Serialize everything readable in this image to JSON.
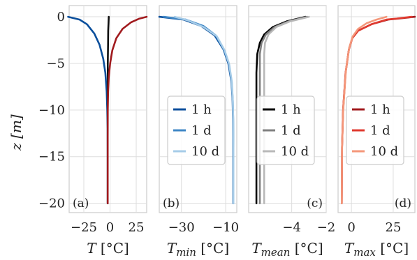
{
  "figure": {
    "ylabel": "z [m]",
    "yticks": [
      0,
      -5,
      -10,
      -15,
      -20
    ],
    "ytick_labels": [
      "0",
      "−5",
      "−10",
      "−15",
      "−20"
    ]
  },
  "chart_data": [
    {
      "type": "line",
      "panel_tag": "(a)",
      "xlabel": "T [°C]",
      "xlim": [
        -39,
        35
      ],
      "xticks": [
        -25,
        0,
        25
      ],
      "xtick_labels": [
        "−25",
        "0",
        "25"
      ],
      "ylim": [
        -21,
        1.2
      ],
      "grid": true,
      "legend": null,
      "series": [
        {
          "color": "#0b4f9c",
          "x": [
            -40,
            -29,
            -22,
            -15,
            -10,
            -6.5,
            -4.5,
            -3.2,
            -2.6,
            -2.3,
            -2.2,
            -2.2
          ],
          "y": [
            0,
            -0.3,
            -0.8,
            -1.8,
            -3,
            -4.5,
            -6,
            -8,
            -10,
            -12,
            -15,
            -20
          ]
        },
        {
          "color": "#111111",
          "x": [
            -1.2,
            -1.4,
            -1.7,
            -1.9,
            -2.1,
            -2.2,
            -2.2,
            -2.2
          ],
          "y": [
            0,
            -0.6,
            -1.5,
            -3,
            -5,
            -8,
            -12,
            -20
          ]
        },
        {
          "color": "#a11a1e",
          "x": [
            35,
            28,
            20,
            12,
            6,
            2.2,
            0.1,
            -1.2,
            -1.8,
            -2.1,
            -2.2,
            -2.2
          ],
          "y": [
            0,
            -0.2,
            -0.6,
            -1.3,
            -2.3,
            -3.6,
            -5,
            -6.5,
            -8,
            -10,
            -13,
            -20
          ]
        }
      ]
    },
    {
      "type": "line",
      "panel_tag": "(b)",
      "xlabel": "T_min [°C]",
      "xlim": [
        -40,
        -5
      ],
      "xticks": [
        -30,
        -10
      ],
      "xtick_labels": [
        "−30",
        "−10"
      ],
      "ylim": [
        -21,
        1.2
      ],
      "grid": true,
      "legend": {
        "placement": "center",
        "entries": [
          "1 h",
          "1 d",
          "10 d"
        ]
      },
      "series": [
        {
          "name": "1 h",
          "color": "#0b4f9c",
          "x": [
            -40,
            -29,
            -21,
            -15,
            -11,
            -8.8,
            -7.4,
            -6.9,
            -6.7,
            -6.6,
            -6.6
          ],
          "y": [
            0,
            -0.3,
            -1,
            -2,
            -3.5,
            -5,
            -7,
            -9,
            -11,
            -14,
            -20
          ]
        },
        {
          "name": "1 d",
          "color": "#3f87c6",
          "x": [
            -38,
            -28,
            -20,
            -14.5,
            -10.8,
            -8.6,
            -7.3,
            -6.8,
            -6.6,
            -6.5,
            -6.5
          ],
          "y": [
            0,
            -0.3,
            -1,
            -2,
            -3.5,
            -5,
            -7,
            -9,
            -11,
            -14,
            -20
          ]
        },
        {
          "name": "10 d",
          "color": "#a6cce8",
          "x": [
            -33,
            -27,
            -20,
            -14,
            -10.5,
            -8.4,
            -7.2,
            -6.8,
            -6.6,
            -6.5,
            -6.5
          ],
          "y": [
            0,
            -0.4,
            -1.1,
            -2.1,
            -3.6,
            -5.1,
            -7,
            -9,
            -11,
            -14,
            -20
          ]
        }
      ]
    },
    {
      "type": "line",
      "panel_tag": "(c)",
      "xlabel": "T_mean [°C]",
      "xlim": [
        -6.5,
        -2
      ],
      "xticks": [
        -4,
        -2
      ],
      "xtick_labels": [
        "−4",
        "−2"
      ],
      "ylim": [
        -21,
        1.2
      ],
      "grid": true,
      "legend": {
        "placement": "center",
        "entries": [
          "1 h",
          "1 d",
          "10 d"
        ]
      },
      "series": [
        {
          "name": "1 h",
          "color": "#000000",
          "x": [
            -3.2,
            -4.3,
            -5.1,
            -5.6,
            -5.85,
            -6.0,
            -6.05,
            -6.05
          ],
          "y": [
            0,
            -0.5,
            -1.1,
            -1.9,
            -2.8,
            -4,
            -6,
            -20
          ]
        },
        {
          "name": "1 d",
          "color": "#808080",
          "x": [
            -3.1,
            -4.2,
            -5.0,
            -5.5,
            -5.75,
            -5.85,
            -5.85,
            -5.85
          ],
          "y": [
            0,
            -0.5,
            -1.1,
            -1.9,
            -2.8,
            -4,
            -6,
            -20
          ]
        },
        {
          "name": "10 d",
          "color": "#b8b8b8",
          "x": [
            -3.0,
            -4.1,
            -4.9,
            -5.35,
            -5.55,
            -5.6,
            -5.6,
            -5.6
          ],
          "y": [
            0,
            -0.5,
            -1.1,
            -1.9,
            -2.8,
            -4,
            -6,
            -20
          ]
        }
      ]
    },
    {
      "type": "line",
      "panel_tag": "(d)",
      "xlabel": "T_max [°C]",
      "xlim": [
        -8,
        38
      ],
      "xticks": [
        0,
        25
      ],
      "xtick_labels": [
        "0",
        "25"
      ],
      "ylim": [
        -21,
        1.2
      ],
      "grid": true,
      "legend": {
        "placement": "center",
        "entries": [
          "1 h",
          "1 d",
          "10 d"
        ]
      },
      "series": [
        {
          "name": "1 h",
          "color": "#a11a1e",
          "x": [
            38,
            28,
            22,
            12,
            4,
            0.5,
            -1.5,
            -3.5,
            -5,
            -5.6,
            -5.8
          ],
          "y": [
            0,
            -0.2,
            -0.3,
            -0.8,
            -1.5,
            -2.3,
            -3.5,
            -6,
            -10,
            -14,
            -20
          ]
        },
        {
          "name": "1 d",
          "color": "#e03a2f",
          "x": [
            36,
            27,
            21,
            12,
            4,
            0.5,
            -1.5,
            -3.5,
            -5,
            -5.6,
            -5.8
          ],
          "y": [
            0,
            -0.2,
            -0.3,
            -0.8,
            -1.5,
            -2.3,
            -3.5,
            -6,
            -10,
            -14,
            -20
          ]
        },
        {
          "name": "10 d",
          "color": "#f4977a",
          "x": [
            21,
            15,
            9,
            4,
            0.8,
            -1.3,
            -3.3,
            -4.9,
            -5.6,
            -5.8
          ],
          "y": [
            0,
            -0.3,
            -0.7,
            -1.3,
            -2.1,
            -3.3,
            -5.8,
            -10,
            -14,
            -20
          ]
        }
      ]
    }
  ]
}
